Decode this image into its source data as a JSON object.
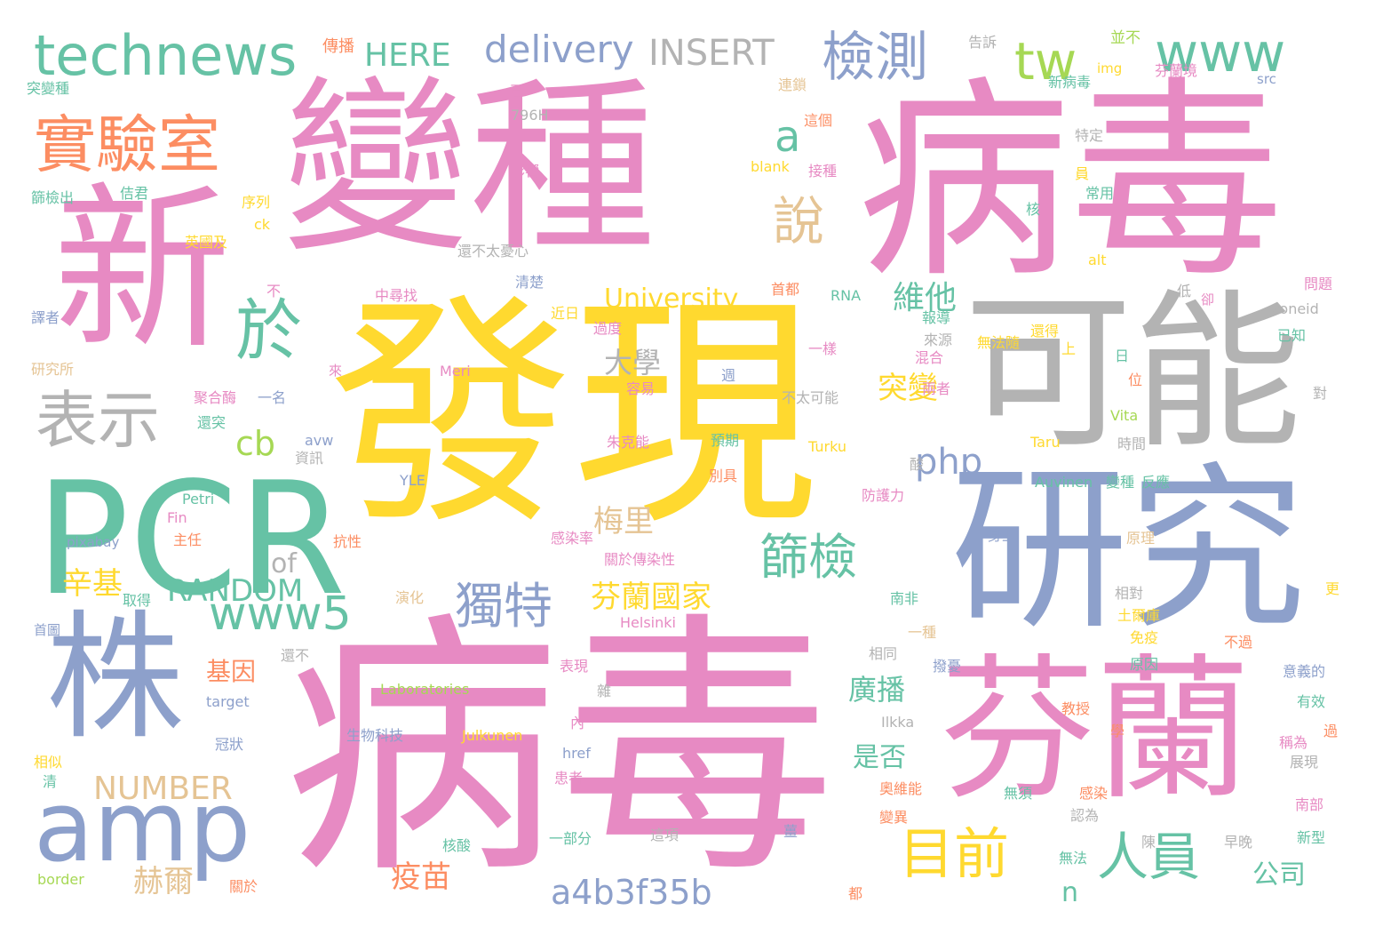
{
  "palette": {
    "pink": "#e78ac3",
    "yellow": "#ffd92f",
    "gray": "#b3b3b3",
    "blue": "#8da0cb",
    "green": "#66c2a5",
    "lime": "#a6d854",
    "orange": "#fc8d62",
    "tan": "#e5c494"
  },
  "words": [
    "病毒",
    "發現",
    "病毒",
    "變種",
    "新",
    "研究",
    "可能",
    "芬蘭",
    "PCR",
    "株",
    "amp",
    "technews",
    "實驗室",
    "表示",
    "於",
    "www",
    "檢測",
    "tw",
    "目前",
    "人員",
    "獨特",
    "篩檢",
    "www5",
    "a4b3f35b",
    "說",
    "a",
    "delivery",
    "INSERT",
    "HERE",
    "NUMBER",
    "RANDOM",
    "University",
    "芬蘭國家",
    "梅里",
    "大學",
    "維他",
    "突變",
    "php",
    "cb",
    "辛基",
    "of",
    "基因",
    "赫爾",
    "疫苗",
    "廣播",
    "是否",
    "公司",
    "n",
    "傳播",
    "告訴",
    "並不",
    "img",
    "芬蘭境",
    "新病毒",
    "連鎖",
    "src",
    "突變種",
    "已",
    "796H",
    "這個",
    "特定",
    "影響",
    "blank",
    "接種",
    "員",
    "篩檢出",
    "佶君",
    "序列",
    "核",
    "常用",
    "ck",
    "英國及",
    "還不太憂心",
    "alt",
    "不",
    "清楚",
    "中尋找",
    "RNA",
    "首都",
    "低",
    "卻",
    "問題",
    "譯者",
    "近日",
    "過度",
    "報導",
    "還得",
    "zoneid",
    "已知",
    "研究所",
    "Meri",
    "一樣",
    "來源",
    "無法隨",
    "上",
    "日",
    "來",
    "混合",
    "週",
    "容易",
    "聚合酶",
    "一名",
    "還突",
    "不太可能",
    "兩者",
    "對",
    "Vita",
    "位",
    "avw",
    "資訊",
    "朱克能",
    "預期",
    "Turku",
    "Taru",
    "時間",
    "YLE",
    "別具",
    "酸",
    "防護力",
    "Auvinen",
    "變種",
    "反應",
    "Petri",
    "主任",
    "Fin",
    "抗性",
    "pixabay",
    "感染率",
    "身上",
    "原理",
    "關於傳染性",
    "取得",
    "演化",
    "南非",
    "相對",
    "更",
    "首圖",
    "Helsinki",
    "土爾庫",
    "免疫",
    "一種",
    "不過",
    "還不",
    "相同",
    "表現",
    "原因",
    "撥憂",
    "意義的",
    "Laboratories",
    "雜",
    "target",
    "有效",
    "內",
    "Ilkka",
    "教授",
    "生物科技",
    "Julkunen",
    "冠狀",
    "過",
    "稱為",
    "學",
    "相似",
    "href",
    "展現",
    "清",
    "患者",
    "南部",
    "奧維能",
    "無須",
    "感染",
    "變異",
    "認為",
    "核酸",
    "這項",
    "一部分",
    "新型",
    "陳",
    "早晚",
    "薑",
    "無法",
    "border",
    "關於",
    "都"
  ]
}
